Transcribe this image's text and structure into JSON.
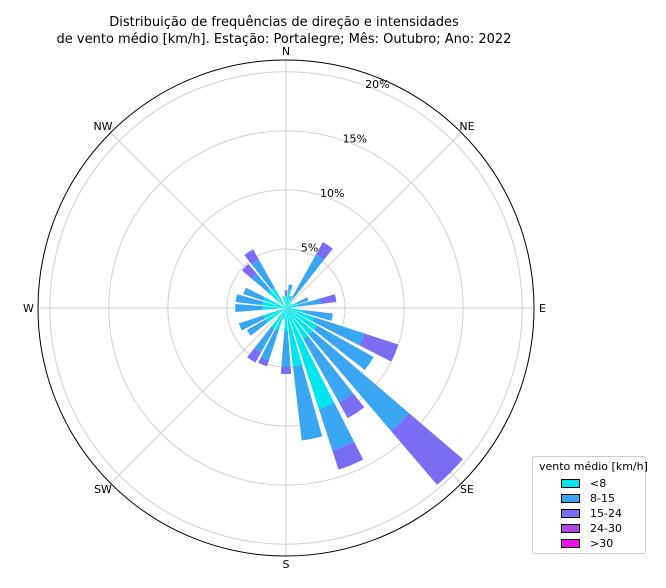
{
  "chart_data": {
    "type": "windrose",
    "title_lines": [
      "Distribuição de frequências de direção e intensidades",
      "de vento médio [km/h]. Estação: Portalegre; Mês: Outubro; Ano: 2022"
    ],
    "directions": [
      "N",
      "NE",
      "E",
      "SE",
      "S",
      "SW",
      "W",
      "NW"
    ],
    "radial_ticks": [
      "5%",
      "10%",
      "15%",
      "20%"
    ],
    "radial_tick_values": [
      5,
      10,
      15,
      20
    ],
    "rmax": 21,
    "legend_title": "vento médio [km/h]",
    "bins": [
      {
        "label": "<8",
        "color": "#00e5ee"
      },
      {
        "label": "8-15",
        "color": "#3aa6f2"
      },
      {
        "label": "15-24",
        "color": "#7b6cf4"
      },
      {
        "label": "24-30",
        "color": "#b144ea"
      },
      {
        "label": ">30",
        "color": "#f20ee8"
      }
    ],
    "sectors": [
      {
        "dir": 0,
        "values": [
          1.0,
          0.0,
          0.5,
          0,
          0
        ]
      },
      {
        "dir": 11.25,
        "values": [
          1.5,
          0.5,
          0.0,
          0,
          0
        ]
      },
      {
        "dir": 22.5,
        "values": [
          0.8,
          0.3,
          0.0,
          0,
          0
        ]
      },
      {
        "dir": 33.75,
        "values": [
          1.0,
          4.2,
          1.2,
          0,
          0
        ]
      },
      {
        "dir": 45,
        "values": [
          0.0,
          0.0,
          0.0,
          0,
          0
        ]
      },
      {
        "dir": 56.25,
        "values": [
          0.6,
          0.0,
          0.0,
          0,
          0
        ]
      },
      {
        "dir": 67.5,
        "values": [
          1.0,
          1.0,
          0.0,
          0,
          0
        ]
      },
      {
        "dir": 78.75,
        "values": [
          1.0,
          2.0,
          1.3,
          0,
          0
        ]
      },
      {
        "dir": 90,
        "values": [
          0.5,
          0.0,
          0.0,
          0,
          0
        ]
      },
      {
        "dir": 101.25,
        "values": [
          1.5,
          2.5,
          0.0,
          0,
          0
        ]
      },
      {
        "dir": 112.5,
        "values": [
          2.5,
          4.5,
          3.0,
          0,
          0
        ]
      },
      {
        "dir": 123.75,
        "values": [
          3.0,
          5.5,
          0.0,
          0,
          0
        ]
      },
      {
        "dir": 135,
        "values": [
          3.0,
          10.7,
          6.0,
          0,
          0
        ]
      },
      {
        "dir": 146.25,
        "values": [
          3.0,
          6.2,
          1.5,
          0,
          0
        ]
      },
      {
        "dir": 157.5,
        "values": [
          9.0,
          3.7,
          1.7,
          0,
          0
        ]
      },
      {
        "dir": 168.75,
        "values": [
          5.0,
          6.3,
          0.0,
          0,
          0
        ]
      },
      {
        "dir": 180,
        "values": [
          2.0,
          3.0,
          0.6,
          0,
          0
        ]
      },
      {
        "dir": 191.25,
        "values": [
          1.0,
          0.0,
          0.0,
          0,
          0
        ]
      },
      {
        "dir": 202.5,
        "values": [
          2.0,
          2.7,
          0.5,
          0,
          0
        ]
      },
      {
        "dir": 213.75,
        "values": [
          2.0,
          2.3,
          1.0,
          0,
          0
        ]
      },
      {
        "dir": 225,
        "values": [
          0.0,
          0.0,
          0.0,
          0,
          0
        ]
      },
      {
        "dir": 236.25,
        "values": [
          2.0,
          1.8,
          0.0,
          0,
          0
        ]
      },
      {
        "dir": 247.5,
        "values": [
          2.0,
          2.2,
          0.0,
          0,
          0
        ]
      },
      {
        "dir": 258.75,
        "values": [
          0.0,
          0.0,
          0.0,
          0,
          0
        ]
      },
      {
        "dir": 270,
        "values": [
          2.0,
          2.3,
          0.0,
          0,
          0
        ]
      },
      {
        "dir": 281.25,
        "values": [
          2.0,
          2.3,
          0.0,
          0,
          0
        ]
      },
      {
        "dir": 292.5,
        "values": [
          2.0,
          1.8,
          0.0,
          0,
          0
        ]
      },
      {
        "dir": 303.75,
        "values": [
          0.0,
          0.0,
          0.0,
          0,
          0
        ]
      },
      {
        "dir": 315,
        "values": [
          2.0,
          1.8,
          1.1,
          0,
          0
        ]
      },
      {
        "dir": 326.25,
        "values": [
          2.0,
          2.7,
          1.0,
          0,
          0
        ]
      },
      {
        "dir": 337.5,
        "values": [
          0.0,
          0.0,
          0.0,
          0,
          0
        ]
      },
      {
        "dir": 348.75,
        "values": [
          1.0,
          0.0,
          0.0,
          0,
          0
        ]
      }
    ],
    "sector_width_deg": 9,
    "grid": true,
    "legend_position": "bottom-right"
  }
}
